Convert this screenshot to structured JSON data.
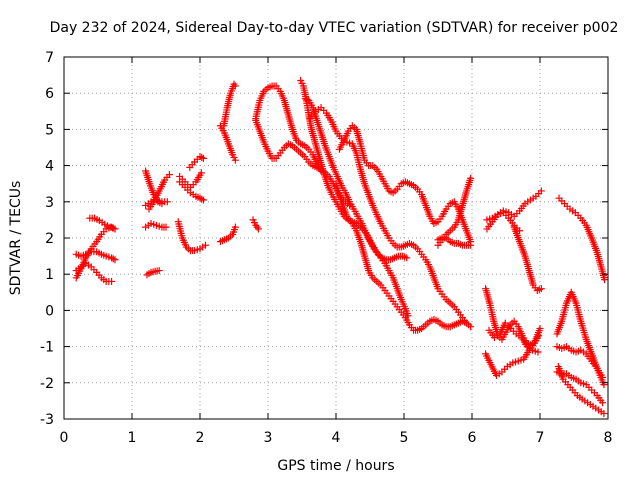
{
  "chart_data": {
    "type": "scatter",
    "title": "Day 232 of 2024, Sidereal Day-to-day VTEC variation (SDTVAR) for receiver p002",
    "xlabel": "GPS time / hours",
    "ylabel": "SDTVAR / TECUs",
    "xlim": [
      0,
      8
    ],
    "ylim": [
      -3,
      7
    ],
    "x_ticks": [
      "0",
      "1",
      "2",
      "3",
      "4",
      "5",
      "6",
      "7",
      "8"
    ],
    "y_ticks": [
      "-3",
      "-2",
      "-1",
      "0",
      "1",
      "2",
      "3",
      "4",
      "5",
      "6",
      "7"
    ],
    "grid": true,
    "legend": "none",
    "marker": "+",
    "color": "#ff0000",
    "series": [
      {
        "x": [
          0.18,
          0.25,
          0.32,
          0.4,
          0.48,
          0.55,
          0.62,
          0.7,
          0.75
        ],
        "y": [
          1.55,
          1.5,
          1.55,
          1.62,
          1.62,
          1.55,
          1.5,
          1.45,
          1.4
        ]
      },
      {
        "x": [
          0.18,
          0.25,
          0.32,
          0.4,
          0.48,
          0.55,
          0.62,
          0.7
        ],
        "y": [
          1.1,
          1.2,
          1.3,
          1.2,
          1.05,
          0.9,
          0.8,
          0.8
        ]
      },
      {
        "x": [
          0.18,
          0.25,
          0.32,
          0.4,
          0.48,
          0.55,
          0.62,
          0.7,
          0.75
        ],
        "y": [
          0.9,
          1.15,
          1.45,
          1.7,
          1.9,
          2.1,
          2.25,
          2.3,
          2.25
        ]
      },
      {
        "x": [
          0.38,
          0.45,
          0.52,
          0.6,
          0.68,
          0.75
        ],
        "y": [
          2.55,
          2.55,
          2.48,
          2.38,
          2.3,
          2.25
        ]
      },
      {
        "x": [
          1.22,
          1.28,
          1.34,
          1.4
        ],
        "y": [
          0.98,
          1.05,
          1.08,
          1.1
        ]
      },
      {
        "x": [
          1.2,
          1.26,
          1.32,
          1.38,
          1.44
        ],
        "y": [
          3.85,
          3.5,
          3.2,
          3.0,
          2.95
        ]
      },
      {
        "x": [
          1.2,
          1.28,
          1.36,
          1.44,
          1.5
        ],
        "y": [
          2.3,
          2.4,
          2.35,
          2.3,
          2.3
        ]
      },
      {
        "x": [
          1.2,
          1.28,
          1.36,
          1.44,
          1.52
        ],
        "y": [
          2.9,
          3.0,
          3.05,
          3.0,
          3.0
        ]
      },
      {
        "x": [
          1.25,
          1.32,
          1.4,
          1.48,
          1.55
        ],
        "y": [
          2.8,
          3.0,
          3.3,
          3.6,
          3.75
        ]
      },
      {
        "x": [
          1.68,
          1.74,
          1.8,
          1.86,
          1.92,
          2.0,
          2.08
        ],
        "y": [
          2.45,
          2.0,
          1.75,
          1.65,
          1.65,
          1.7,
          1.8
        ]
      },
      {
        "x": [
          1.7,
          1.78,
          1.86,
          1.94,
          2.0,
          2.05
        ],
        "y": [
          3.55,
          3.4,
          3.25,
          3.15,
          3.1,
          3.05
        ]
      },
      {
        "x": [
          1.7,
          1.78,
          1.86,
          1.94,
          2.02
        ],
        "y": [
          3.7,
          3.55,
          3.4,
          3.55,
          3.8
        ]
      },
      {
        "x": [
          1.85,
          1.92,
          2.0,
          2.05
        ],
        "y": [
          3.95,
          4.1,
          4.25,
          4.2
        ]
      },
      {
        "x": [
          2.3,
          2.36,
          2.42,
          2.48,
          2.52
        ],
        "y": [
          1.9,
          1.95,
          2.0,
          2.1,
          2.3
        ]
      },
      {
        "x": [
          2.35,
          2.4,
          2.45,
          2.5,
          2.52
        ],
        "y": [
          5.1,
          5.6,
          6.0,
          6.25,
          6.2
        ]
      },
      {
        "x": [
          2.3,
          2.36,
          2.42,
          2.48,
          2.52
        ],
        "y": [
          5.1,
          4.9,
          4.6,
          4.3,
          4.15
        ]
      },
      {
        "x": [
          2.78,
          2.82,
          2.86
        ],
        "y": [
          2.5,
          2.35,
          2.25
        ]
      },
      {
        "x": [
          2.82,
          2.88,
          2.94,
          3.0,
          3.06,
          3.12,
          3.18,
          3.24,
          3.3,
          3.36,
          3.42,
          3.48,
          3.54,
          3.6,
          3.66,
          3.72,
          3.78,
          3.84,
          3.9,
          3.96,
          4.02,
          4.08,
          4.14,
          4.2
        ],
        "y": [
          5.3,
          5.8,
          6.05,
          6.15,
          6.2,
          6.2,
          6.05,
          5.8,
          5.4,
          5.0,
          4.7,
          4.6,
          4.55,
          4.45,
          4.3,
          4.05,
          3.85,
          3.8,
          3.7,
          3.5,
          3.3,
          3.1,
          3.0,
          2.9
        ]
      },
      {
        "x": [
          2.82,
          2.88,
          2.94,
          3.0,
          3.06,
          3.12,
          3.18,
          3.24,
          3.3,
          3.36,
          3.42,
          3.48,
          3.54,
          3.6,
          3.66,
          3.72,
          3.78
        ],
        "y": [
          5.25,
          4.95,
          4.65,
          4.4,
          4.2,
          4.2,
          4.35,
          4.5,
          4.6,
          4.55,
          4.45,
          4.35,
          4.25,
          4.1,
          4.0,
          3.95,
          3.9
        ]
      },
      {
        "x": [
          3.48,
          3.52,
          3.56,
          3.6,
          3.64,
          3.7,
          3.76,
          3.82,
          3.88,
          3.94,
          4.0,
          4.06,
          4.12,
          4.18,
          4.24,
          4.3,
          4.36,
          4.42,
          4.48,
          4.54,
          4.6,
          4.66,
          4.72,
          4.78,
          4.84,
          4.9,
          4.96,
          5.02,
          5.06
        ],
        "y": [
          6.35,
          6.2,
          5.85,
          5.4,
          5.0,
          4.6,
          4.2,
          3.8,
          3.45,
          3.2,
          3.0,
          2.8,
          2.6,
          2.5,
          2.45,
          2.4,
          2.3,
          2.2,
          2.0,
          1.8,
          1.6,
          1.45,
          1.3,
          1.1,
          0.9,
          0.6,
          0.3,
          0.05,
          -0.15
        ]
      },
      {
        "x": [
          3.55,
          3.6,
          3.66,
          3.72,
          3.78,
          3.84,
          3.9,
          3.96,
          4.02,
          4.08,
          4.14,
          4.2,
          4.26,
          4.32,
          4.38,
          4.44,
          4.5,
          4.56,
          4.62,
          4.68,
          4.74,
          4.8,
          4.86,
          4.92,
          4.98,
          5.04
        ],
        "y": [
          5.85,
          5.8,
          5.6,
          5.25,
          4.9,
          4.55,
          4.25,
          3.95,
          3.7,
          3.45,
          3.25,
          3.0,
          2.8,
          2.6,
          2.4,
          2.15,
          1.9,
          1.7,
          1.55,
          1.45,
          1.4,
          1.4,
          1.45,
          1.5,
          1.5,
          1.45
        ]
      },
      {
        "x": [
          3.62,
          3.7,
          3.78,
          3.86,
          3.94,
          4.0,
          4.08,
          4.16,
          4.24,
          4.3,
          4.36,
          4.42,
          4.48,
          4.54,
          4.6,
          4.66,
          4.72,
          4.78,
          4.84,
          4.9,
          4.96,
          5.02,
          5.08,
          5.14,
          5.2,
          5.26,
          5.32,
          5.38,
          5.44,
          5.5,
          5.56,
          5.62,
          5.68,
          5.74,
          5.8,
          5.86,
          5.92,
          5.98
        ],
        "y": [
          5.3,
          5.5,
          5.6,
          5.45,
          5.2,
          4.95,
          4.75,
          4.65,
          4.6,
          4.35,
          3.9,
          3.5,
          3.2,
          2.9,
          2.65,
          2.4,
          2.2,
          2.0,
          1.85,
          1.75,
          1.75,
          1.8,
          1.85,
          1.8,
          1.7,
          1.55,
          1.4,
          1.2,
          0.9,
          0.6,
          0.45,
          0.3,
          0.2,
          0.1,
          -0.05,
          -0.2,
          -0.35,
          -0.45
        ]
      },
      {
        "x": [
          4.0,
          4.08,
          4.16,
          4.24,
          4.3,
          4.36,
          4.42,
          4.48,
          4.54,
          4.6,
          4.66,
          4.72,
          4.78,
          4.84,
          4.9,
          4.96,
          5.02,
          5.08,
          5.14,
          5.2,
          5.26,
          5.32,
          5.38,
          5.44,
          5.5,
          5.56,
          5.62,
          5.68,
          5.74,
          5.8,
          5.86,
          5.92
        ],
        "y": [
          3.5,
          3.0,
          2.6,
          2.4,
          2.2,
          1.9,
          1.5,
          1.1,
          0.9,
          0.8,
          0.7,
          0.55,
          0.4,
          0.25,
          0.1,
          -0.05,
          -0.2,
          -0.4,
          -0.55,
          -0.55,
          -0.5,
          -0.4,
          -0.3,
          -0.25,
          -0.3,
          -0.4,
          -0.45,
          -0.45,
          -0.4,
          -0.35,
          -0.3,
          -0.35
        ]
      },
      {
        "x": [
          4.05,
          4.12,
          4.18,
          4.24,
          4.3,
          4.36,
          4.42,
          4.48,
          4.54,
          4.6,
          4.66,
          4.72,
          4.78,
          4.84,
          4.9,
          4.96,
          5.02,
          5.08,
          5.14,
          5.2,
          5.26,
          5.32,
          5.38,
          5.44,
          5.5,
          5.56,
          5.62,
          5.68,
          5.74,
          5.8,
          5.86,
          5.92,
          5.98
        ],
        "y": [
          4.45,
          4.7,
          4.95,
          5.1,
          5.0,
          4.6,
          4.15,
          4.0,
          4.0,
          3.9,
          3.7,
          3.5,
          3.3,
          3.25,
          3.35,
          3.5,
          3.55,
          3.5,
          3.45,
          3.35,
          3.2,
          2.9,
          2.6,
          2.4,
          2.45,
          2.6,
          2.8,
          2.95,
          3.0,
          2.8,
          2.5,
          2.2,
          1.9
        ]
      },
      {
        "x": [
          5.5,
          5.56,
          5.62,
          5.68,
          5.74,
          5.8,
          5.86,
          5.92,
          5.98
        ],
        "y": [
          1.8,
          1.95,
          2.1,
          2.2,
          2.3,
          2.5,
          2.9,
          3.3,
          3.65
        ]
      },
      {
        "x": [
          5.5,
          5.56,
          5.62,
          5.68,
          5.74,
          5.8,
          5.86,
          5.92,
          5.98
        ],
        "y": [
          1.95,
          2.0,
          2.0,
          1.9,
          1.85,
          1.85,
          1.8,
          1.8,
          1.8
        ]
      },
      {
        "x": [
          6.22,
          6.3,
          6.38,
          6.46,
          6.54,
          6.62,
          6.7,
          6.78,
          6.86,
          6.94,
          7.02
        ],
        "y": [
          2.5,
          2.55,
          2.65,
          2.75,
          2.7,
          2.6,
          2.75,
          2.95,
          3.05,
          3.15,
          3.3
        ]
      },
      {
        "x": [
          6.22,
          6.3,
          6.38,
          6.46,
          6.54,
          6.62,
          6.7
        ],
        "y": [
          2.25,
          2.45,
          2.65,
          2.7,
          2.55,
          2.35,
          2.2
        ]
      },
      {
        "x": [
          6.62,
          6.7,
          6.78,
          6.84,
          6.9,
          6.96,
          7.02
        ],
        "y": [
          2.3,
          1.9,
          1.5,
          1.1,
          0.7,
          0.55,
          0.6
        ]
      },
      {
        "x": [
          6.2,
          6.26,
          6.32,
          6.38,
          6.44,
          6.5,
          6.56,
          6.62,
          6.68,
          6.74,
          6.8,
          6.86,
          6.92,
          6.98
        ],
        "y": [
          0.6,
          0.2,
          -0.3,
          -0.7,
          -0.8,
          -0.6,
          -0.4,
          -0.3,
          -0.45,
          -0.7,
          -0.9,
          -0.95,
          -0.9,
          -0.7
        ]
      },
      {
        "x": [
          6.2,
          6.28,
          6.36,
          6.44,
          6.52,
          6.6,
          6.68,
          6.76,
          6.84,
          6.92,
          7.0
        ],
        "y": [
          -1.2,
          -1.5,
          -1.8,
          -1.7,
          -1.55,
          -1.45,
          -1.4,
          -1.35,
          -1.1,
          -0.9,
          -0.5
        ]
      },
      {
        "x": [
          6.25,
          6.33,
          6.41,
          6.49,
          6.57,
          6.65,
          6.73,
          6.81,
          6.89,
          6.97
        ],
        "y": [
          -0.55,
          -0.75,
          -0.65,
          -0.35,
          -0.5,
          -0.65,
          -0.75,
          -1.0,
          -1.1,
          -1.15
        ]
      },
      {
        "x": [
          7.27,
          7.34,
          7.41,
          7.48,
          7.55,
          7.62,
          7.7,
          7.78,
          7.86,
          7.94
        ],
        "y": [
          -1.55,
          -1.9,
          -2.05,
          -2.2,
          -2.35,
          -2.45,
          -2.55,
          -2.65,
          -2.75,
          -2.85
        ]
      },
      {
        "x": [
          7.25,
          7.32,
          7.39,
          7.46,
          7.53,
          7.6,
          7.68,
          7.76,
          7.84,
          7.92
        ],
        "y": [
          -1.7,
          -1.75,
          -1.75,
          -1.85,
          -1.9,
          -2.0,
          -2.05,
          -2.2,
          -2.35,
          -2.55
        ]
      },
      {
        "x": [
          7.25,
          7.32,
          7.39,
          7.46,
          7.53,
          7.6,
          7.68,
          7.76,
          7.84,
          7.94
        ],
        "y": [
          -0.65,
          -0.3,
          0.2,
          0.5,
          0.2,
          -0.3,
          -0.8,
          -1.2,
          -1.6,
          -2.05
        ]
      },
      {
        "x": [
          7.25,
          7.32,
          7.39,
          7.46,
          7.53,
          7.6,
          7.68,
          7.76,
          7.84,
          7.92
        ],
        "y": [
          -1.0,
          -1.05,
          -1.0,
          -1.1,
          -1.15,
          -1.1,
          -1.2,
          -1.4,
          -1.6,
          -1.85
        ]
      },
      {
        "x": [
          7.28,
          7.36,
          7.44,
          7.52,
          7.6,
          7.68,
          7.76,
          7.84,
          7.9,
          7.95
        ],
        "y": [
          3.1,
          2.95,
          2.8,
          2.7,
          2.55,
          2.35,
          2.0,
          1.6,
          1.2,
          0.85
        ]
      }
    ]
  }
}
